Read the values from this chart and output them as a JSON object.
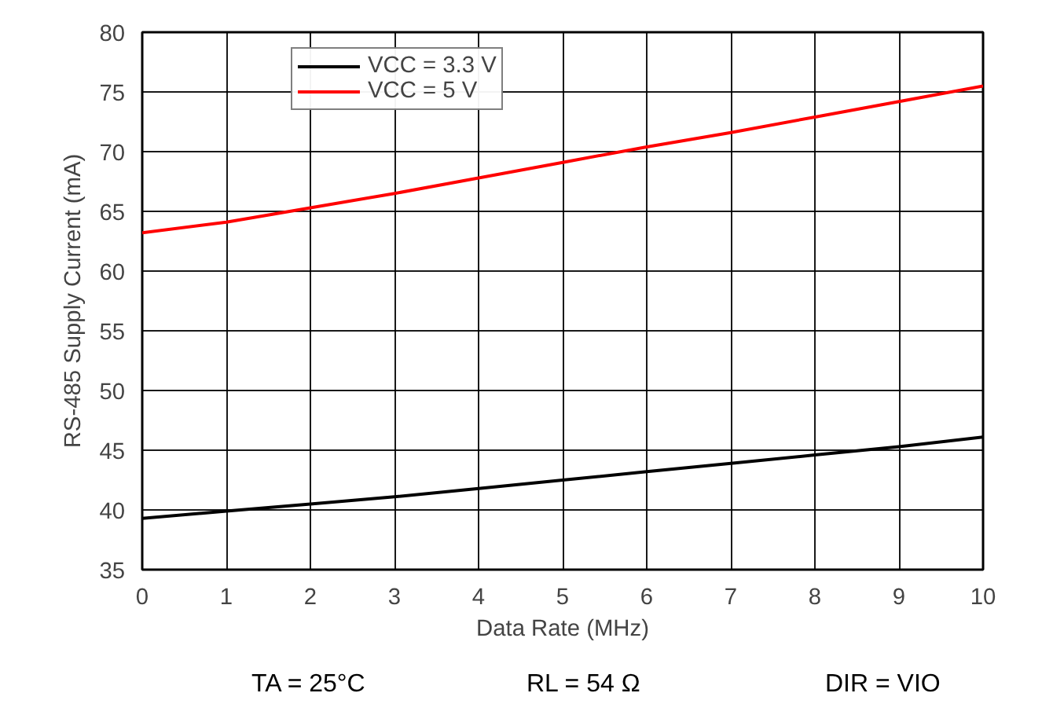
{
  "chart_data": {
    "type": "line",
    "xlabel": "Data Rate (MHz)",
    "ylabel": "RS-485 Supply Current (mA)",
    "x": [
      0,
      1,
      2,
      3,
      4,
      5,
      6,
      7,
      8,
      9,
      10
    ],
    "series": [
      {
        "name": "VCC = 3.3 V",
        "color": "#000000",
        "values": [
          39.3,
          39.9,
          40.5,
          41.1,
          41.8,
          42.5,
          43.2,
          43.9,
          44.6,
          45.3,
          46.1
        ]
      },
      {
        "name": "VCC = 5 V",
        "color": "#ff0000",
        "values": [
          63.2,
          64.1,
          65.3,
          66.5,
          67.8,
          69.1,
          70.4,
          71.6,
          72.9,
          74.2,
          75.5
        ]
      }
    ],
    "xlim": [
      0,
      10
    ],
    "ylim": [
      35,
      80
    ],
    "xticks": [
      0,
      1,
      2,
      3,
      4,
      5,
      6,
      7,
      8,
      9,
      10
    ],
    "yticks": [
      35,
      40,
      45,
      50,
      55,
      60,
      65,
      70,
      75,
      80
    ],
    "grid": true,
    "legend": "top left",
    "line_style": "solid",
    "marker": "none",
    "annotations": [
      "TA = 25°C",
      "RL = 54 Ω",
      "DIR = VIO"
    ]
  }
}
